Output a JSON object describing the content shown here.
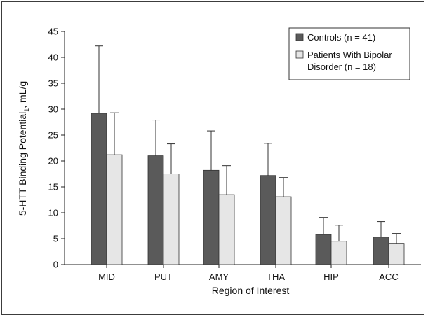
{
  "chart_data": {
    "type": "bar",
    "xlabel": "Region of Interest",
    "ylabel_main": "5-HTT Binding Potential",
    "ylabel_sub": "1",
    "ylabel_unit": ", mL/g",
    "ylim": [
      0,
      45
    ],
    "yticks": [
      0,
      5,
      10,
      15,
      20,
      25,
      30,
      35,
      40,
      45
    ],
    "categories": [
      "MID",
      "PUT",
      "AMY",
      "THA",
      "HIP",
      "ACC"
    ],
    "series": [
      {
        "name": "Controls (n = 41)",
        "color": "#5a5a5a",
        "values": [
          29.2,
          21.0,
          18.2,
          17.2,
          5.8,
          5.3
        ],
        "error": [
          13.0,
          6.9,
          7.6,
          6.2,
          3.3,
          3.0
        ]
      },
      {
        "name_line1": "Patients With Bipolar",
        "name_line2": "Disorder (n = 18)",
        "color": "#e6e6e6",
        "values": [
          21.2,
          17.5,
          13.5,
          13.1,
          4.5,
          4.1
        ],
        "error": [
          8.1,
          5.8,
          5.6,
          3.7,
          3.1,
          1.9
        ]
      }
    ],
    "legend_position": "top-right",
    "grid": false
  }
}
